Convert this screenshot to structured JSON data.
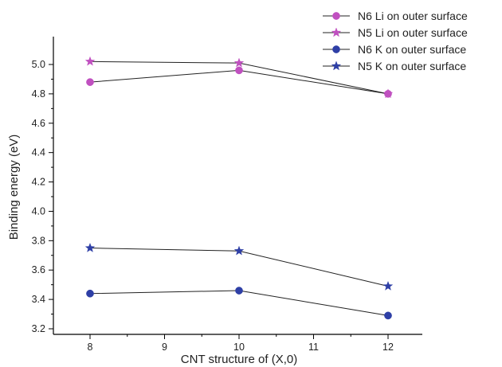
{
  "chart_data": {
    "type": "line",
    "xlabel": "CNT structure of (X,0)",
    "ylabel": "Binding energy (eV)",
    "xlim": [
      7.5,
      12.7
    ],
    "ylim": [
      3.2,
      5.1
    ],
    "x_ticks": [
      8,
      9,
      10,
      11,
      12
    ],
    "y_ticks": [
      3.2,
      3.4,
      3.6,
      3.8,
      4.0,
      4.2,
      4.4,
      4.6,
      4.8,
      5.0
    ],
    "x_tick_labels": [
      "8",
      "9",
      "10",
      "11",
      "12"
    ],
    "y_tick_labels": [
      "3.2",
      "3.4",
      "3.6",
      "3.8",
      "4.0",
      "4.2",
      "4.4",
      "4.6",
      "4.8",
      "5.0"
    ],
    "legend_position": "top-right",
    "x": [
      8,
      10,
      12
    ],
    "series": [
      {
        "name": "N6 Li on outer surface",
        "values": [
          4.88,
          4.96,
          4.8
        ],
        "marker": "circle",
        "color": "#c050c0"
      },
      {
        "name": "N5 Li on outer surface",
        "values": [
          5.02,
          5.01,
          4.8
        ],
        "marker": "star",
        "color": "#c050c0"
      },
      {
        "name": "N6 K on outer surface",
        "values": [
          3.44,
          3.46,
          3.29
        ],
        "marker": "circle",
        "color": "#2e3fa6"
      },
      {
        "name": "N5 K on outer surface",
        "values": [
          3.75,
          3.73,
          3.49
        ],
        "marker": "star",
        "color": "#2e3fa6"
      }
    ]
  }
}
